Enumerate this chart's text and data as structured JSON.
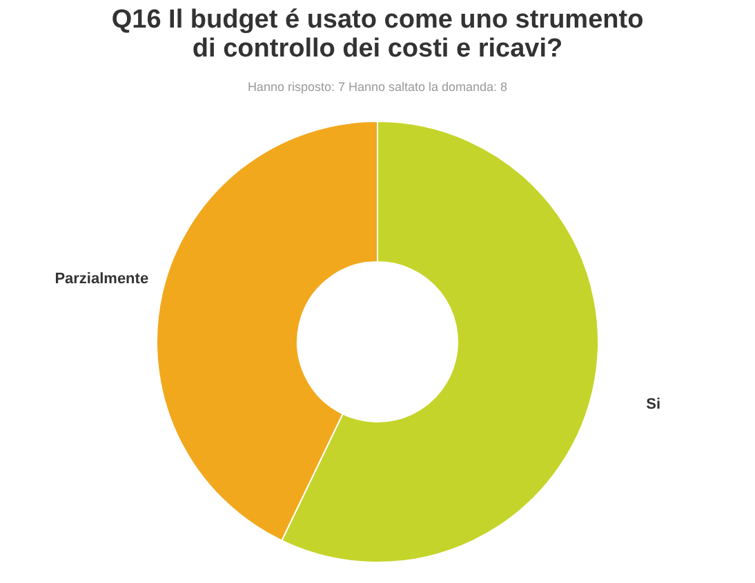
{
  "chart_data": {
    "type": "donut",
    "title": "Q16 Il budget é usato come uno strumento\ndi controllo dei costi e ricavi?",
    "subtitle": "Hanno risposto: 7    Hanno saltato la domanda: 8",
    "categories": [
      "Si",
      "Parzialmente"
    ],
    "values": [
      57.14,
      42.86
    ],
    "colors": [
      "#c5d42a",
      "#f2a81d"
    ],
    "legend": false
  }
}
